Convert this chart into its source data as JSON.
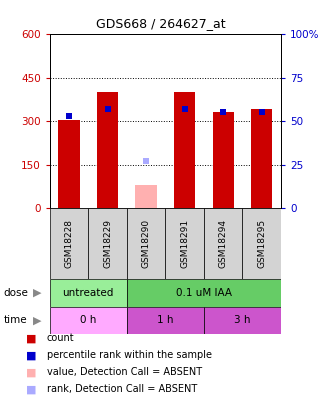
{
  "title": "GDS668 / 264627_at",
  "samples": [
    "GSM18228",
    "GSM18229",
    "GSM18290",
    "GSM18291",
    "GSM18294",
    "GSM18295"
  ],
  "bar_values": [
    305,
    400,
    80,
    400,
    330,
    340
  ],
  "bar_colors": [
    "#cc0000",
    "#cc0000",
    "#ffb0b0",
    "#cc0000",
    "#cc0000",
    "#cc0000"
  ],
  "rank_values": [
    53,
    57,
    27,
    57,
    55,
    55
  ],
  "rank_colors": [
    "#0000cc",
    "#0000cc",
    "#aaaaff",
    "#0000cc",
    "#0000cc",
    "#0000cc"
  ],
  "absent_flags": [
    false,
    false,
    true,
    false,
    false,
    false
  ],
  "ylim_left": [
    0,
    600
  ],
  "ylim_right": [
    0,
    100
  ],
  "yticks_left": [
    0,
    150,
    300,
    450,
    600
  ],
  "yticks_right": [
    0,
    25,
    50,
    75,
    100
  ],
  "ytick_labels_left": [
    "0",
    "150",
    "300",
    "450",
    "600"
  ],
  "ytick_labels_right": [
    "0",
    "25",
    "50",
    "75",
    "100%"
  ],
  "dose_labels": [
    {
      "text": "untreated",
      "start": 0,
      "end": 2,
      "color": "#99ee99"
    },
    {
      "text": "0.1 uM IAA",
      "start": 2,
      "end": 6,
      "color": "#66cc66"
    }
  ],
  "time_labels": [
    {
      "text": "0 h",
      "start": 0,
      "end": 2,
      "color": "#ffaaff"
    },
    {
      "text": "1 h",
      "start": 2,
      "end": 4,
      "color": "#cc55cc"
    },
    {
      "text": "3 h",
      "start": 4,
      "end": 6,
      "color": "#cc55cc"
    }
  ],
  "legend_items": [
    {
      "label": "count",
      "color": "#cc0000"
    },
    {
      "label": "percentile rank within the sample",
      "color": "#0000cc"
    },
    {
      "label": "value, Detection Call = ABSENT",
      "color": "#ffb0b0"
    },
    {
      "label": "rank, Detection Call = ABSENT",
      "color": "#aaaaff"
    }
  ],
  "bar_width": 0.55,
  "bg_color": "#ffffff",
  "plot_bg": "#ffffff",
  "axis_left_color": "#cc0000",
  "axis_right_color": "#0000cc"
}
